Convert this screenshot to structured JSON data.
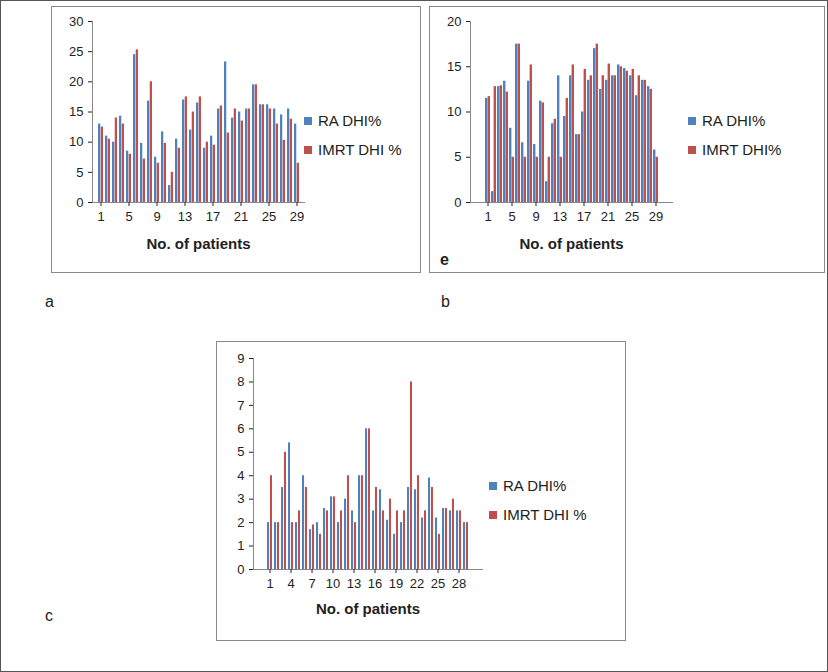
{
  "chart_data": [
    {
      "type": "bar",
      "title": "a",
      "x_label": "No. of patients",
      "categories": [
        1,
        null,
        null,
        null,
        5,
        null,
        null,
        null,
        9,
        null,
        null,
        null,
        13,
        null,
        null,
        null,
        17,
        null,
        null,
        null,
        21,
        null,
        null,
        null,
        25,
        null,
        null,
        null,
        29
      ],
      "series": [
        {
          "name": "RA DHI%",
          "color": "#4f81bd",
          "values": [
            13,
            11,
            10,
            14.3,
            8.5,
            24.5,
            9.8,
            16.8,
            7.5,
            11.7,
            2.8,
            10.5,
            17,
            12,
            16.5,
            9,
            11,
            15.5,
            23.3,
            14,
            15,
            15.5,
            19.5,
            16.2,
            16.2,
            15.5,
            14.5,
            15.5,
            13
          ]
        },
        {
          "name": "IMRT DHI %",
          "color": "#c0504d",
          "values": [
            12.5,
            10.5,
            14,
            13,
            8,
            25.3,
            7.2,
            20,
            6.5,
            9.8,
            5,
            9,
            17.5,
            15,
            17.5,
            10,
            9.5,
            16,
            11.5,
            15.5,
            13.5,
            15.5,
            19.5,
            16.2,
            15.5,
            13,
            10.3,
            13.8,
            6.5
          ]
        }
      ],
      "ylim": [
        0,
        30
      ],
      "yticks": [
        0,
        5,
        10,
        15,
        20,
        25,
        30
      ],
      "grid": false,
      "legend": "right"
    },
    {
      "type": "bar",
      "title": "b",
      "x_label": "No. of patients",
      "annotations": [
        "e"
      ],
      "categories": [
        1,
        null,
        null,
        null,
        5,
        null,
        null,
        null,
        9,
        null,
        null,
        null,
        13,
        null,
        null,
        null,
        17,
        null,
        null,
        null,
        21,
        null,
        null,
        null,
        25,
        null,
        null,
        null,
        29
      ],
      "series": [
        {
          "name": "RA DHI%",
          "color": "#4f81bd",
          "values": [
            11.5,
            1.2,
            12.8,
            13.4,
            8.2,
            17.5,
            6.6,
            13.4,
            6.4,
            11.2,
            2.3,
            8.7,
            14,
            9.5,
            14,
            7.5,
            10,
            13.5,
            17,
            12.5,
            13.5,
            14,
            15.2,
            14.8,
            14,
            11.8,
            13.5,
            12.8,
            5.8
          ]
        },
        {
          "name": "IMRT DHI%",
          "color": "#c0504d",
          "values": [
            11.7,
            12.8,
            12.9,
            12.2,
            5,
            17.5,
            5,
            15.2,
            5,
            11,
            5,
            9.2,
            5,
            11.5,
            15.2,
            7.5,
            14.7,
            14,
            17.5,
            14,
            15.3,
            14,
            15,
            14.5,
            14.7,
            14,
            13.5,
            12.5,
            5
          ]
        }
      ],
      "ylim": [
        0,
        20
      ],
      "yticks": [
        0,
        5,
        10,
        15,
        20
      ],
      "grid": false,
      "legend": "right"
    },
    {
      "type": "bar",
      "title": "c",
      "x_label": "No. of patients",
      "categories": [
        1,
        null,
        null,
        4,
        null,
        null,
        7,
        null,
        null,
        10,
        null,
        null,
        13,
        null,
        null,
        16,
        null,
        null,
        19,
        null,
        null,
        22,
        null,
        null,
        25,
        null,
        null,
        28,
        null
      ],
      "series": [
        {
          "name": "RA DHI%",
          "color": "#4f81bd",
          "values": [
            2,
            2,
            3.5,
            5.4,
            2,
            4,
            1.7,
            2,
            2.6,
            3.1,
            2,
            3,
            2.5,
            4,
            6,
            2.5,
            3.4,
            2.1,
            1.5,
            2,
            3.5,
            3.4,
            2.2,
            3.9,
            2.2,
            2.6,
            2.5,
            2.5,
            2
          ]
        },
        {
          "name": "IMRT DHI %",
          "color": "#c0504d",
          "values": [
            4,
            2,
            5,
            2,
            2.5,
            3.5,
            1.9,
            1.5,
            2.5,
            3.1,
            2.5,
            4,
            2,
            4,
            6,
            3.5,
            2.5,
            3,
            2.5,
            2.5,
            8,
            4,
            2.5,
            3.5,
            1.5,
            2.6,
            3,
            2.5,
            2
          ]
        }
      ],
      "ylim": [
        0,
        9
      ],
      "yticks": [
        0,
        1,
        2,
        3,
        4,
        5,
        6,
        7,
        8,
        9
      ],
      "grid": false,
      "legend": "right"
    }
  ]
}
